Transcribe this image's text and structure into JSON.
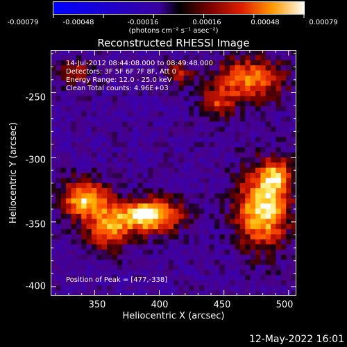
{
  "colorbar": {
    "tick_labels": [
      "-0.00079",
      "-0.00048",
      "-0.00016",
      "0.00016",
      "0.00048",
      "0.00079"
    ],
    "units": "(photons cm⁻² s⁻¹ asec⁻²)",
    "min": -0.00079,
    "max": 0.00079
  },
  "title": "Reconstructed RHESSI Image",
  "info": {
    "time_range": "14-Jul-2012 08:44:08.000 to 08:49:48.000",
    "detectors": "Detectors: 3F 5F 6F 7F 8F, Att 0",
    "energy": "Energy Range: 12.0 - 25.0 keV",
    "clean": "Clean     Total counts: 4.96E+03"
  },
  "peak": "Position of Peak = [477,-338]",
  "chart_data": {
    "type": "heatmap",
    "title": "Reconstructed RHESSI Image",
    "xlabel": "Heliocentric X (arcsec)",
    "ylabel": "Heliocentric Y (arcsec)",
    "xlim": [
      316,
      506
    ],
    "ylim": [
      -407,
      -217
    ],
    "xticks": [
      350,
      400,
      450,
      500
    ],
    "yticks": [
      -250,
      -300,
      -350,
      -400
    ],
    "peak": [
      477,
      -338
    ],
    "blobs": [
      {
        "x": 392,
        "y": -345,
        "sx": 18,
        "sy": 9,
        "amp": 1.0
      },
      {
        "x": 342,
        "y": -332,
        "sx": 12,
        "sy": 10,
        "amp": 0.85
      },
      {
        "x": 360,
        "y": -355,
        "sx": 12,
        "sy": 12,
        "amp": 0.6
      },
      {
        "x": 480,
        "y": -340,
        "sx": 14,
        "sy": 20,
        "amp": 0.95
      },
      {
        "x": 490,
        "y": -315,
        "sx": 8,
        "sy": 10,
        "amp": 0.6
      },
      {
        "x": 470,
        "y": -240,
        "sx": 18,
        "sy": 12,
        "amp": 0.7
      },
      {
        "x": 445,
        "y": -258,
        "sx": 8,
        "sy": 8,
        "amp": 0.45
      },
      {
        "x": 415,
        "y": -235,
        "sx": 7,
        "sy": 6,
        "amp": 0.45
      },
      {
        "x": 335,
        "y": -235,
        "sx": 10,
        "sy": 7,
        "amp": 0.35
      }
    ]
  },
  "timestamp": "12-May-2022 16:01"
}
